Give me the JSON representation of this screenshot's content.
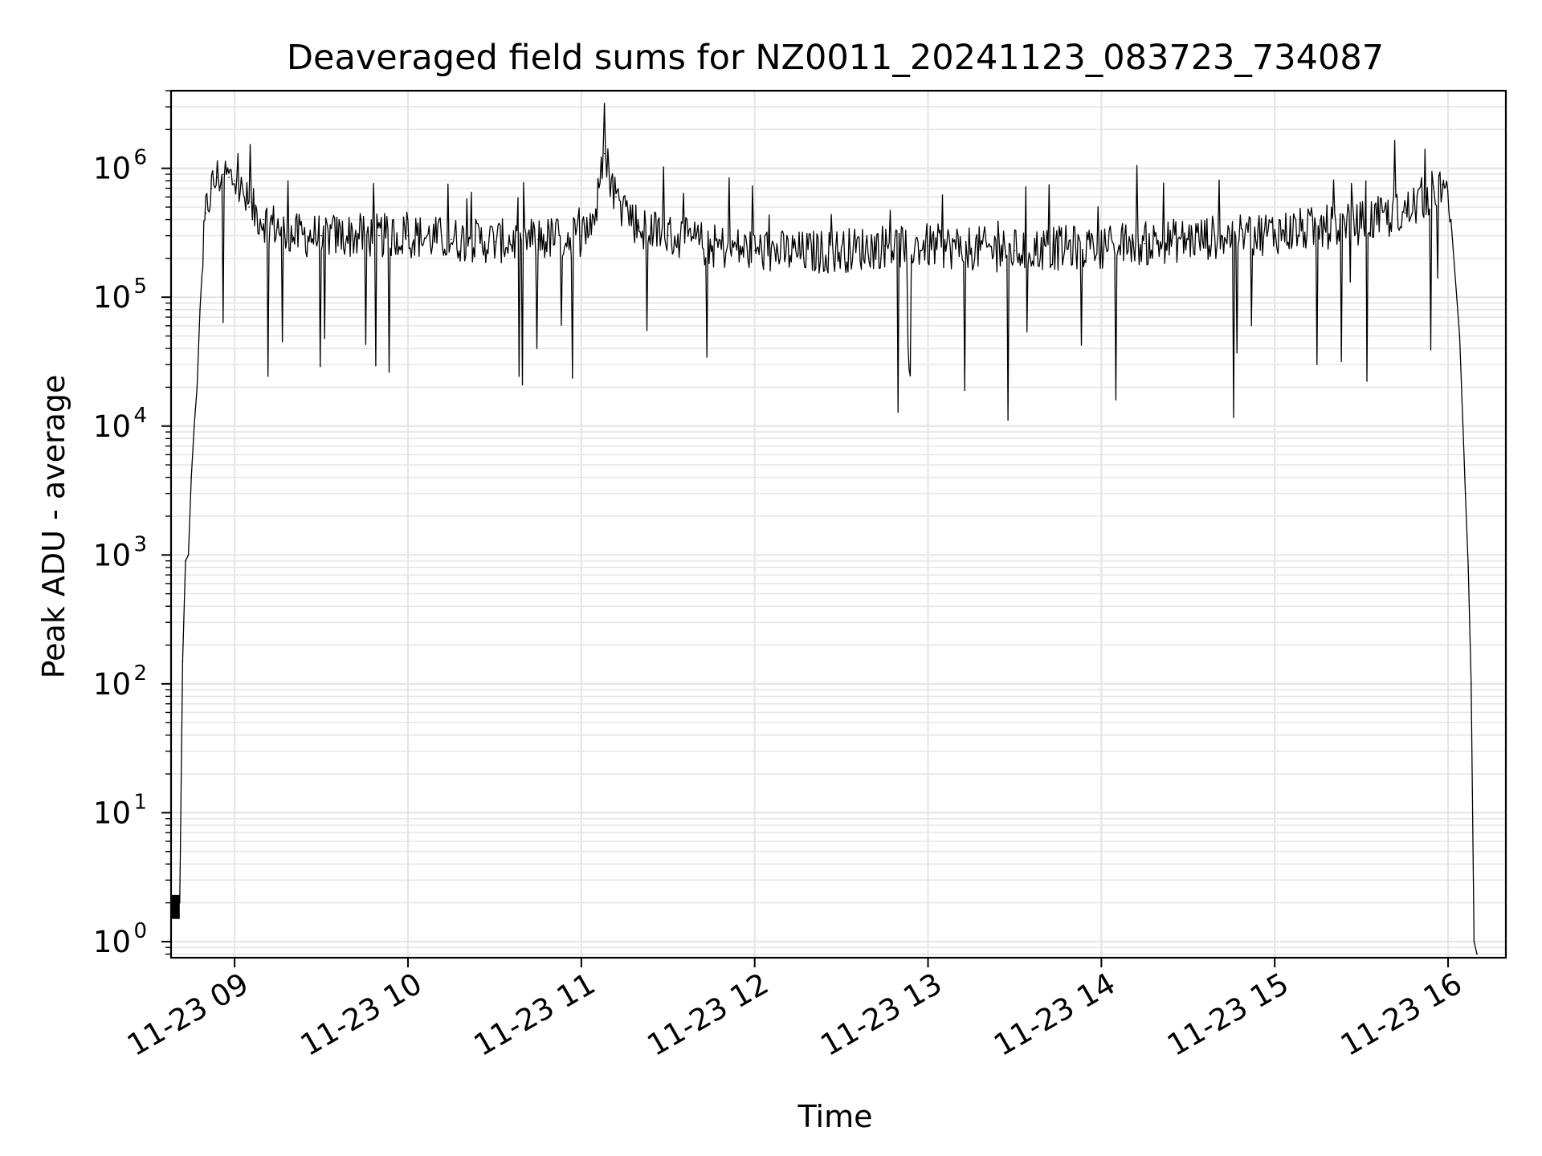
{
  "chart_data": {
    "type": "line",
    "title": "Deaveraged field sums for NZ0011_20241123_083723_734087",
    "xlabel": "Time",
    "ylabel": "Peak ADU - average",
    "yscale": "log",
    "xlim": [
      "2024-11-23 08:38",
      "2024-11-23 16:20"
    ],
    "ylim": [
      0.75,
      4000000
    ],
    "grid": true,
    "x_ticks": [
      {
        "value": "2024-11-23 09:00",
        "label": "11-23 09"
      },
      {
        "value": "2024-11-23 10:00",
        "label": "11-23 10"
      },
      {
        "value": "2024-11-23 11:00",
        "label": "11-23 11"
      },
      {
        "value": "2024-11-23 12:00",
        "label": "11-23 12"
      },
      {
        "value": "2024-11-23 13:00",
        "label": "11-23 13"
      },
      {
        "value": "2024-11-23 14:00",
        "label": "11-23 14"
      },
      {
        "value": "2024-11-23 15:00",
        "label": "11-23 15"
      },
      {
        "value": "2024-11-23 16:00",
        "label": "11-23 16"
      }
    ],
    "y_ticks": [
      {
        "value": 1,
        "base": "10",
        "exp": "0"
      },
      {
        "value": 10,
        "base": "10",
        "exp": "1"
      },
      {
        "value": 100,
        "base": "10",
        "exp": "2"
      },
      {
        "value": 1000,
        "base": "10",
        "exp": "3"
      },
      {
        "value": 10000,
        "base": "10",
        "exp": "4"
      },
      {
        "value": 100000,
        "base": "10",
        "exp": "5"
      },
      {
        "value": 1000000,
        "base": "10",
        "exp": "6"
      }
    ],
    "series": [
      {
        "color": "#000000",
        "x": [
          "2024-11-23 08:38",
          "2024-11-23 08:41",
          "2024-11-23 08:42",
          "2024-11-23 08:43",
          "2024-11-23 08:44",
          "2024-11-23 08:45",
          "2024-11-23 08:46",
          "2024-11-23 08:47",
          "2024-11-23 08:48",
          "2024-11-23 08:49",
          "2024-11-23 08:50",
          "2024-11-23 08:52",
          "2024-11-23 08:54",
          "2024-11-23 08:56",
          "2024-11-23 08:58",
          "2024-11-23 09:00",
          "2024-11-23 09:05",
          "2024-11-23 09:10",
          "2024-11-23 09:15",
          "2024-11-23 09:20",
          "2024-11-23 09:30",
          "2024-11-23 09:40",
          "2024-11-23 09:50",
          "2024-11-23 10:00",
          "2024-11-23 10:15",
          "2024-11-23 10:30",
          "2024-11-23 10:45",
          "2024-11-23 11:00",
          "2024-11-23 11:05",
          "2024-11-23 11:08",
          "2024-11-23 11:12",
          "2024-11-23 11:20",
          "2024-11-23 11:30",
          "2024-11-23 11:45",
          "2024-11-23 12:00",
          "2024-11-23 12:15",
          "2024-11-23 12:30",
          "2024-11-23 12:45",
          "2024-11-23 13:00",
          "2024-11-23 13:15",
          "2024-11-23 13:30",
          "2024-11-23 13:45",
          "2024-11-23 14:00",
          "2024-11-23 14:15",
          "2024-11-23 14:30",
          "2024-11-23 14:45",
          "2024-11-23 15:00",
          "2024-11-23 15:15",
          "2024-11-23 15:30",
          "2024-11-23 15:45",
          "2024-11-23 15:52",
          "2024-11-23 15:58",
          "2024-11-23 16:01",
          "2024-11-23 16:04",
          "2024-11-23 16:06",
          "2024-11-23 16:07",
          "2024-11-23 16:08",
          "2024-11-23 16:09",
          "2024-11-23 16:10"
        ],
        "y": [
          2,
          2,
          150,
          900,
          1000,
          4000,
          10000,
          20000,
          80000,
          200000,
          450000,
          700000,
          850000,
          900000,
          850000,
          800000,
          500000,
          400000,
          350000,
          300000,
          300000,
          300000,
          300000,
          300000,
          280000,
          270000,
          280000,
          300000,
          450000,
          1300000,
          600000,
          350000,
          300000,
          250000,
          230000,
          220000,
          230000,
          250000,
          250000,
          240000,
          230000,
          240000,
          250000,
          260000,
          280000,
          300000,
          320000,
          340000,
          380000,
          450000,
          600000,
          750000,
          400000,
          50000,
          3000,
          800,
          100,
          1,
          0.8
        ]
      }
    ],
    "annotations": [
      {
        "x": "2024-11-23 11:09",
        "y": 1300000,
        "text": ""
      }
    ]
  }
}
